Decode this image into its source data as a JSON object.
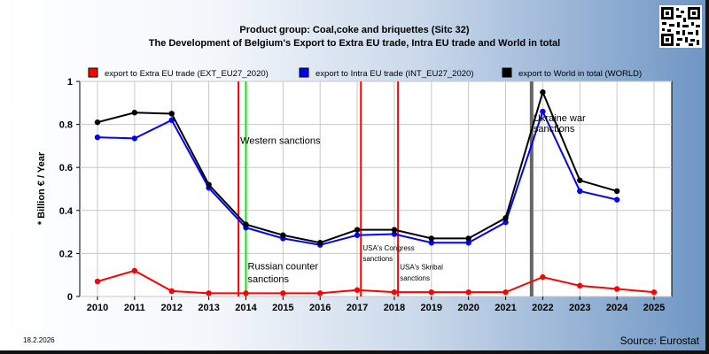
{
  "header": {
    "title": "Product group: Coal,coke and briquettes (Sitc 32)",
    "subtitle": "The Development of Belgium's Export to Extra EU trade, Intra EU trade and World in total"
  },
  "footer": {
    "date": "18.2.2026",
    "source": "Source: Eurostat"
  },
  "chart_data": {
    "type": "line",
    "title": "Product group: Coal,coke and briquettes (Sitc 32)",
    "subtitle": "The Development of Belgium's Export to Extra EU trade, Intra EU trade and World in total",
    "ylabel": "* Billion € / Year",
    "xlabel": "",
    "ylim": [
      0,
      1
    ],
    "yticks": [
      "0",
      "0.2",
      "0.4",
      "0.6",
      "0.8",
      "1"
    ],
    "x": [
      2010,
      2011,
      2012,
      2013,
      2014,
      2015,
      2016,
      2017,
      2018,
      2019,
      2020,
      2021,
      2022,
      2023,
      2024,
      2025
    ],
    "grid": true,
    "legend_position": "top",
    "series": [
      {
        "name": "export to Extra EU trade (EXT_EU27_2020)",
        "color": "#ff0000",
        "values": [
          0.07,
          0.12,
          0.025,
          0.015,
          0.015,
          0.015,
          0.015,
          0.03,
          0.02,
          0.02,
          0.02,
          0.02,
          0.09,
          0.05,
          0.035,
          0.02
        ]
      },
      {
        "name": "export to Intra EU trade (INT_EU27_2020)",
        "color": "#0000ff",
        "values": [
          0.74,
          0.735,
          0.82,
          0.505,
          0.32,
          0.27,
          0.24,
          0.285,
          0.29,
          0.25,
          0.25,
          0.345,
          0.86,
          0.49,
          0.45,
          null
        ]
      },
      {
        "name": "export to World in total (WORLD)",
        "color": "#000000",
        "values": [
          0.81,
          0.855,
          0.85,
          0.52,
          0.335,
          0.285,
          0.25,
          0.31,
          0.31,
          0.27,
          0.27,
          0.365,
          0.95,
          0.54,
          0.49,
          null
        ]
      }
    ],
    "annotations": [
      {
        "x": 2013.8,
        "color": "#ff0000",
        "text": ""
      },
      {
        "x": 2014.0,
        "color": "#00ee00",
        "text": ""
      },
      {
        "x": 2017.1,
        "color": "#ff0000",
        "text": ""
      },
      {
        "x": 2018.1,
        "color": "#ff0000",
        "text": ""
      },
      {
        "x": 2021.7,
        "color": "#666666",
        "text": ""
      }
    ],
    "annotation_labels": [
      {
        "text": "Western sanctions",
        "x": 2013.85,
        "y": 0.71
      },
      {
        "text": "Russian counter",
        "x": 2014.05,
        "y": 0.125
      },
      {
        "text": "sanctions",
        "x": 2014.05,
        "y": 0.065
      },
      {
        "text": "USA's Congress",
        "x": 2017.15,
        "y": 0.215
      },
      {
        "text": "sanctions",
        "x": 2017.15,
        "y": 0.165
      },
      {
        "text": "USA's Skribal",
        "x": 2018.15,
        "y": 0.125
      },
      {
        "text": "sanctions",
        "x": 2018.15,
        "y": 0.075
      },
      {
        "text": "Ukraine war",
        "x": 2021.75,
        "y": 0.815
      },
      {
        "text": "sanctions",
        "x": 2021.75,
        "y": 0.765
      }
    ]
  }
}
